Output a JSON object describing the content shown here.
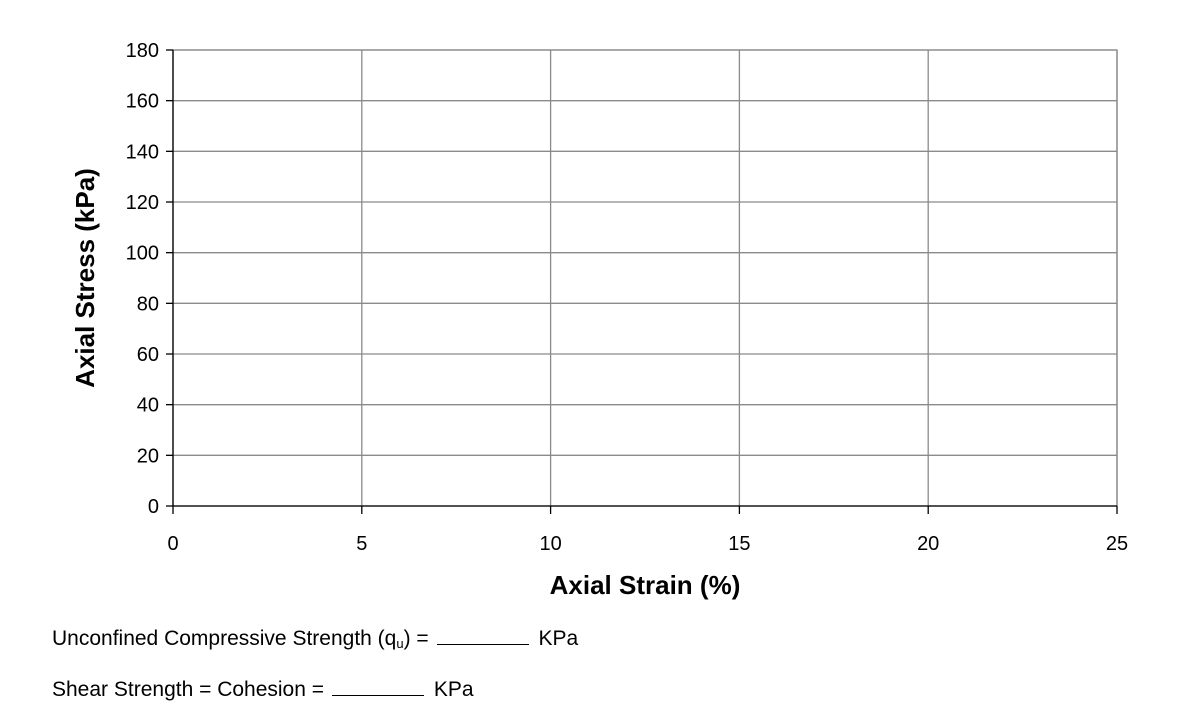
{
  "chart_data": {
    "type": "scatter",
    "title": "",
    "xlabel": "Axial Strain (%)",
    "ylabel": "Axial Stress (kPa)",
    "xlim": [
      0,
      25
    ],
    "ylim": [
      0,
      180
    ],
    "xticks": [
      0,
      5,
      10,
      15,
      20,
      25
    ],
    "yticks": [
      0,
      20,
      40,
      60,
      80,
      100,
      120,
      140,
      160,
      180
    ],
    "grid": true,
    "series": []
  },
  "form": {
    "qu_label": "Unconfined Compressive Strength (q",
    "qu_sub": "u",
    "qu_after": ") =",
    "qu_unit": "KPa",
    "cohesion_label": "Shear Strength = Cohesion =",
    "cohesion_unit": "KPa"
  }
}
